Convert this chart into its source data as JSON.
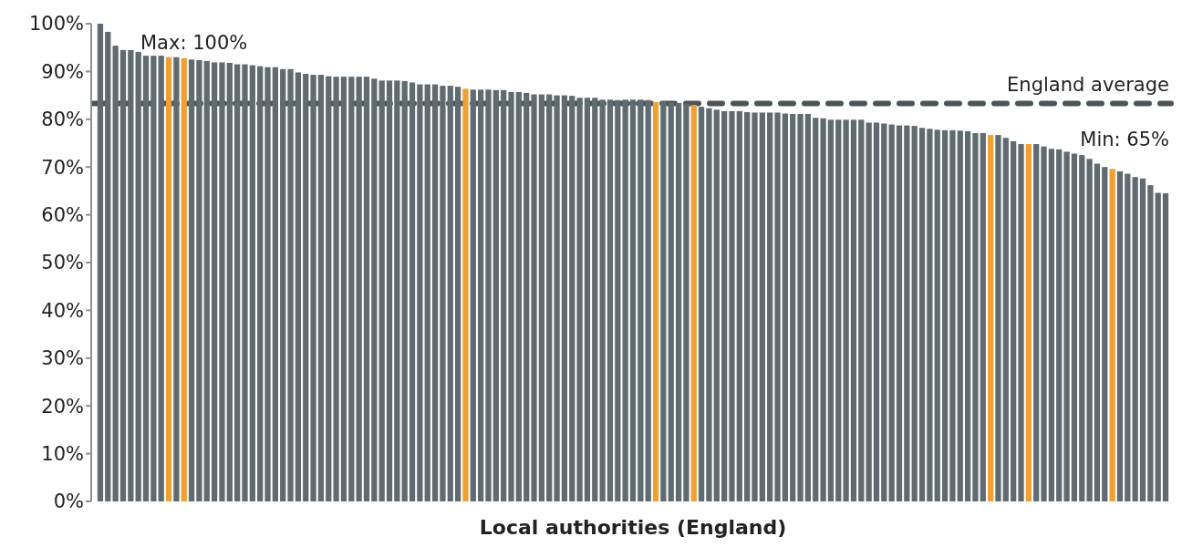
{
  "chart_data": {
    "type": "bar",
    "xlabel": "Local authorities (England)",
    "categories": [
      null,
      null,
      null,
      null,
      null,
      null,
      null,
      null,
      null,
      null,
      null,
      null,
      null,
      null,
      null,
      null,
      null,
      null,
      null,
      null,
      null,
      null,
      null,
      null,
      null,
      null,
      null,
      null,
      null,
      null,
      null,
      null,
      null,
      null,
      null,
      null,
      null,
      null,
      null,
      null,
      null,
      null,
      null,
      null,
      null,
      null,
      null,
      null,
      null,
      null,
      null,
      null,
      null,
      null,
      null,
      null,
      null,
      null,
      null,
      null,
      null,
      null,
      null,
      null,
      null,
      null,
      null,
      null,
      null,
      null,
      null,
      null,
      null,
      null,
      null,
      null,
      null,
      null,
      null,
      null,
      null,
      null,
      null,
      null,
      null,
      null,
      null,
      null,
      null,
      null,
      null,
      null,
      null,
      null,
      null,
      null,
      null,
      null,
      null,
      null,
      null,
      null,
      null,
      null,
      null,
      null,
      null,
      null,
      null,
      null,
      null,
      null,
      null,
      null,
      null,
      null,
      null,
      null,
      null,
      null,
      null,
      null,
      null,
      null,
      null,
      null,
      null,
      null,
      null,
      null,
      null,
      null,
      null,
      null,
      null,
      null,
      null,
      null,
      null,
      null,
      null
    ],
    "values": [
      100,
      98.3,
      95.4,
      94.5,
      94.5,
      94.1,
      93.3,
      93.3,
      93.3,
      93.0,
      93.0,
      92.8,
      92.5,
      92.4,
      92.2,
      91.9,
      91.9,
      91.8,
      91.5,
      91.5,
      91.3,
      91.1,
      90.9,
      90.9,
      90.5,
      90.5,
      89.8,
      89.5,
      89.3,
      89.3,
      89.0,
      88.9,
      88.9,
      88.9,
      88.9,
      88.9,
      88.5,
      88.1,
      88.1,
      88.1,
      88.0,
      87.7,
      87.3,
      87.3,
      87.3,
      87.0,
      87.0,
      86.8,
      86.4,
      86.2,
      86.2,
      86.2,
      86.1,
      86.1,
      85.7,
      85.7,
      85.5,
      85.2,
      85.2,
      85.2,
      85.0,
      85.0,
      84.9,
      84.5,
      84.5,
      84.5,
      84.1,
      84.1,
      84.0,
      84.1,
      84.1,
      84.1,
      84.0,
      83.6,
      83.7,
      83.5,
      83.4,
      83.3,
      83.0,
      82.6,
      82.3,
      82.0,
      81.7,
      81.7,
      81.7,
      81.5,
      81.4,
      81.4,
      81.4,
      81.4,
      81.2,
      81.1,
      81.1,
      81.1,
      80.3,
      80.2,
      79.9,
      79.9,
      79.9,
      79.9,
      79.9,
      79.3,
      79.3,
      79.1,
      78.9,
      78.7,
      78.7,
      78.6,
      78.2,
      78.0,
      77.8,
      77.7,
      77.7,
      77.6,
      77.5,
      77.1,
      77.1,
      76.7,
      76.7,
      76.1,
      75.4,
      74.8,
      74.8,
      74.8,
      74.3,
      73.8,
      73.7,
      73.2,
      72.8,
      72.5,
      71.7,
      70.7,
      70.0,
      69.6,
      69.1,
      68.6,
      67.9,
      67.6,
      66.2,
      64.6,
      64.5
    ],
    "colors": [
      "#5f6b70",
      "#5f6b70",
      "#5f6b70",
      "#5f6b70",
      "#5f6b70",
      "#5f6b70",
      "#5f6b70",
      "#5f6b70",
      "#5f6b70",
      "#f0a033",
      "#5f6b70",
      "#f0a033",
      "#5f6b70",
      "#5f6b70",
      "#5f6b70",
      "#5f6b70",
      "#5f6b70",
      "#5f6b70",
      "#5f6b70",
      "#5f6b70",
      "#5f6b70",
      "#5f6b70",
      "#5f6b70",
      "#5f6b70",
      "#5f6b70",
      "#5f6b70",
      "#5f6b70",
      "#5f6b70",
      "#5f6b70",
      "#5f6b70",
      "#5f6b70",
      "#5f6b70",
      "#5f6b70",
      "#5f6b70",
      "#5f6b70",
      "#5f6b70",
      "#5f6b70",
      "#5f6b70",
      "#5f6b70",
      "#5f6b70",
      "#5f6b70",
      "#5f6b70",
      "#5f6b70",
      "#5f6b70",
      "#5f6b70",
      "#5f6b70",
      "#5f6b70",
      "#5f6b70",
      "#f0a033",
      "#5f6b70",
      "#5f6b70",
      "#5f6b70",
      "#5f6b70",
      "#5f6b70",
      "#5f6b70",
      "#5f6b70",
      "#5f6b70",
      "#5f6b70",
      "#5f6b70",
      "#5f6b70",
      "#5f6b70",
      "#5f6b70",
      "#5f6b70",
      "#5f6b70",
      "#5f6b70",
      "#5f6b70",
      "#5f6b70",
      "#5f6b70",
      "#5f6b70",
      "#5f6b70",
      "#5f6b70",
      "#5f6b70",
      "#5f6b70",
      "#f0a033",
      "#5f6b70",
      "#5f6b70",
      "#5f6b70",
      "#5f6b70",
      "#f0a033",
      "#5f6b70",
      "#5f6b70",
      "#5f6b70",
      "#5f6b70",
      "#5f6b70",
      "#5f6b70",
      "#5f6b70",
      "#5f6b70",
      "#5f6b70",
      "#5f6b70",
      "#5f6b70",
      "#5f6b70",
      "#5f6b70",
      "#5f6b70",
      "#5f6b70",
      "#5f6b70",
      "#5f6b70",
      "#5f6b70",
      "#5f6b70",
      "#5f6b70",
      "#5f6b70",
      "#5f6b70",
      "#5f6b70",
      "#5f6b70",
      "#5f6b70",
      "#5f6b70",
      "#5f6b70",
      "#5f6b70",
      "#5f6b70",
      "#5f6b70",
      "#5f6b70",
      "#5f6b70",
      "#5f6b70",
      "#5f6b70",
      "#5f6b70",
      "#5f6b70",
      "#5f6b70",
      "#5f6b70",
      "#f0a033",
      "#5f6b70",
      "#5f6b70",
      "#5f6b70",
      "#5f6b70",
      "#f0a033",
      "#5f6b70",
      "#5f6b70",
      "#5f6b70",
      "#5f6b70",
      "#5f6b70",
      "#5f6b70",
      "#5f6b70",
      "#5f6b70",
      "#5f6b70",
      "#5f6b70",
      "#f0a033",
      "#5f6b70",
      "#5f6b70",
      "#5f6b70",
      "#5f6b70",
      "#5f6b70",
      "#5f6b70",
      "#5f6b70"
    ],
    "ylim": [
      0,
      100
    ],
    "yticks": [
      {
        "value": 0,
        "label": "0%"
      },
      {
        "value": 10,
        "label": "10%"
      },
      {
        "value": 20,
        "label": "20%"
      },
      {
        "value": 30,
        "label": "30%"
      },
      {
        "value": 40,
        "label": "40%"
      },
      {
        "value": 50,
        "label": "50%"
      },
      {
        "value": 60,
        "label": "60%"
      },
      {
        "value": 70,
        "label": "70%"
      },
      {
        "value": 80,
        "label": "80%"
      },
      {
        "value": 90,
        "label": "90%"
      },
      {
        "value": 100,
        "label": "100%"
      }
    ],
    "ref_lines": [
      {
        "axis": "y",
        "value": 83.3,
        "label": "England average",
        "color": "#4d5457",
        "line_style": "dashed"
      }
    ],
    "annotations": [
      "Max: 100%",
      "Min: 65%"
    ]
  }
}
